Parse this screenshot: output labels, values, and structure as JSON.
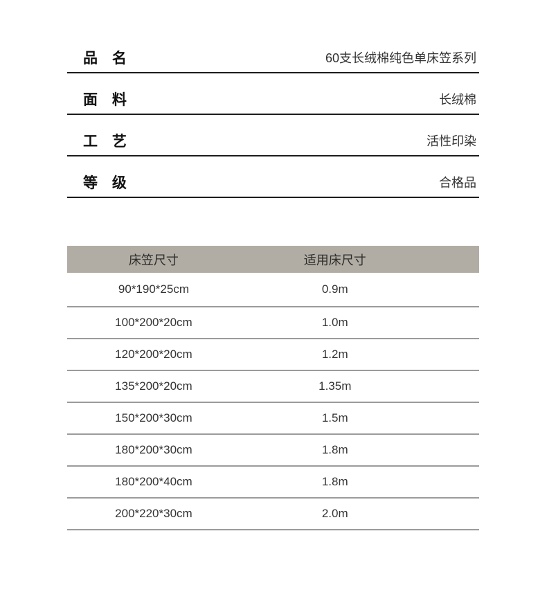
{
  "specs": {
    "rows": [
      {
        "label": "品 名",
        "value": "60支长绒棉纯色单床笠系列"
      },
      {
        "label": "面 料",
        "value": "长绒棉"
      },
      {
        "label": "工 艺",
        "value": "活性印染"
      },
      {
        "label": "等 级",
        "value": "合格品"
      }
    ]
  },
  "size_table": {
    "headers": [
      "床笠尺寸",
      "适用床尺寸"
    ],
    "rows": [
      [
        "90*190*25cm",
        "0.9m"
      ],
      [
        "100*200*20cm",
        "1.0m"
      ],
      [
        "120*200*20cm",
        "1.2m"
      ],
      [
        "135*200*20cm",
        "1.35m"
      ],
      [
        "150*200*30cm",
        "1.5m"
      ],
      [
        "180*200*30cm",
        "1.8m"
      ],
      [
        "180*200*40cm",
        "1.8m"
      ],
      [
        "200*220*30cm",
        "2.0m"
      ]
    ]
  },
  "colors": {
    "header_bg": "#b1ada4",
    "divider": "#9b9b9b",
    "spec_line": "#1c1c1c",
    "text": "#333333",
    "background": "#ffffff"
  }
}
